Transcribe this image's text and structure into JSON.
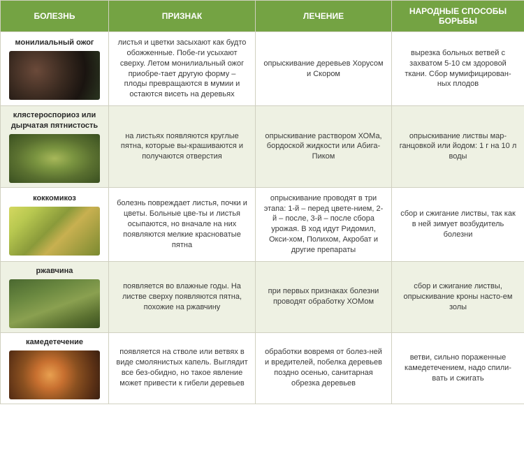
{
  "headers": {
    "disease": "БОЛЕЗНЬ",
    "sign": "ПРИЗНАК",
    "treatment": "ЛЕЧЕНИЕ",
    "folk": "НАРОДНЫЕ СПОСОБЫ БОРЬБЫ"
  },
  "colors": {
    "header_bg": "#74a343",
    "header_text": "#ffffff",
    "row_odd_bg": "#ffffff",
    "row_even_bg": "#eef1e3",
    "border": "#d0d0c0",
    "text": "#3a3a3a"
  },
  "thumb_gradients": {
    "r0": "radial-gradient(circle at 30% 40%, #6b4a3a 0%, #3a2a20 40%, #1a1410 70%, #2a3520 100%)",
    "r1": "radial-gradient(ellipse at 50% 50%, #a8b85a 0%, #7a9440 30%, #5a7030 60%, #3a5020 100%)",
    "r2": "linear-gradient(135deg, #d4d860 0%, #b8c850 20%, #8a9a3a 45%, #c8b050 60%, #7a8a30 100%)",
    "r3": "linear-gradient(160deg, #4a6830 0%, #6a8840 30%, #8aa050 55%, #5a7030 80%, #3a5020 100%)",
    "r4": "radial-gradient(circle at 45% 50%, #e8a050 0%, #c87030 25%, #8a5020 50%, #5a3015 80%, #3a2010 100%)"
  },
  "rows": [
    {
      "disease": "монилиальный ожог",
      "sign": "листья и цветки засыхают как будто обожженные. Побе-ги усыхают сверху. Летом монилиальный ожог приобре-тает другую форму – плоды превращаются в мумии и остаются висеть на деревьях",
      "treatment": "опрыскивание деревьев Хорусом и Скором",
      "folk": "вырезка больных ветвей с захватом 5-10 см здоровой ткани. Сбор мумифицирован-ных плодов"
    },
    {
      "disease": "клястероспориоз или дырчатая пятнистость",
      "sign": "на листьях появляются круглые пятна, которые вы-крашиваются и получаются отверстия",
      "treatment": "опрыскивание раствором ХОМа, бордоской жидкости или Абига-Пиком",
      "folk": "опрыскивание листвы мар-ганцовкой или йодом: 1 г на 10 л воды"
    },
    {
      "disease": "коккомикоз",
      "sign": "болезнь повреждает листья, почки и цветы. Больные цве-ты и листья осыпаются, но вначале на них появляются мелкие красноватые пятна",
      "treatment": "опрыскивание проводят в три этапа: 1-й – перед цвете-нием, 2-й – после, 3-й – после сбора урожая. В ход идут Ридомил, Окси-хом, Полихом, Акробат и другие препараты",
      "folk": "сбор и сжигание листвы, так как в ней зимует возбудитель болезни"
    },
    {
      "disease": "ржавчина",
      "sign": "появляется во влажные годы. На листве сверху появляются пятна, похожие на ржавчину",
      "treatment": "при первых признаках болезни проводят обработку ХОМом",
      "folk": "сбор и сжигание листвы, опрыскивание кроны насто-ем золы"
    },
    {
      "disease": "камедетечение",
      "sign": "появляется на стволе или ветвях в виде смолянистых капель. Выглядит все без-обидно, но такое явление может привести к гибели деревьев",
      "treatment": "обработки вовремя от болез-ней и вредителей, побелка деревьев поздно осенью, санитарная обрезка деревьев",
      "folk": "ветви, сильно пораженные камедетечением, надо спили-вать и сжигать"
    }
  ]
}
